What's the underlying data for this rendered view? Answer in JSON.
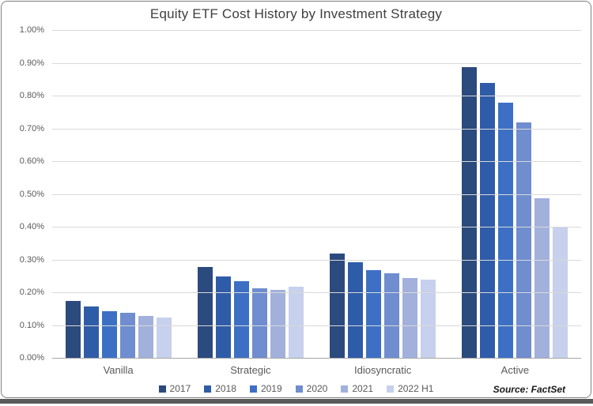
{
  "source_note": "Source: FactSet",
  "chart_data": {
    "type": "bar",
    "title": "Equity ETF Cost History by Investment Strategy",
    "xlabel": "",
    "ylabel": "",
    "unit": "percent",
    "categories": [
      "Vanilla",
      "Strategic",
      "Idiosyncratic",
      "Active"
    ],
    "series": [
      {
        "name": "2017",
        "color": "#2b4a7d",
        "values": [
          0.175,
          0.28,
          0.32,
          0.89
        ]
      },
      {
        "name": "2018",
        "color": "#2f5ca8",
        "values": [
          0.16,
          0.25,
          0.295,
          0.84
        ]
      },
      {
        "name": "2019",
        "color": "#3d70c4",
        "values": [
          0.145,
          0.235,
          0.27,
          0.78
        ]
      },
      {
        "name": "2020",
        "color": "#6f8dcf",
        "values": [
          0.14,
          0.215,
          0.26,
          0.72
        ]
      },
      {
        "name": "2021",
        "color": "#a2b0dc",
        "values": [
          0.13,
          0.21,
          0.245,
          0.49
        ]
      },
      {
        "name": "2022 H1",
        "color": "#c7d0ec",
        "values": [
          0.125,
          0.22,
          0.24,
          0.4
        ]
      }
    ],
    "ylim": [
      0,
      1.0
    ],
    "y_ticks": [
      "1.00%",
      "0.90%",
      "0.80%",
      "0.70%",
      "0.60%",
      "0.50%",
      "0.40%",
      "0.30%",
      "0.20%",
      "0.10%",
      "0.00%"
    ],
    "grid": true,
    "legend_position": "bottom"
  }
}
